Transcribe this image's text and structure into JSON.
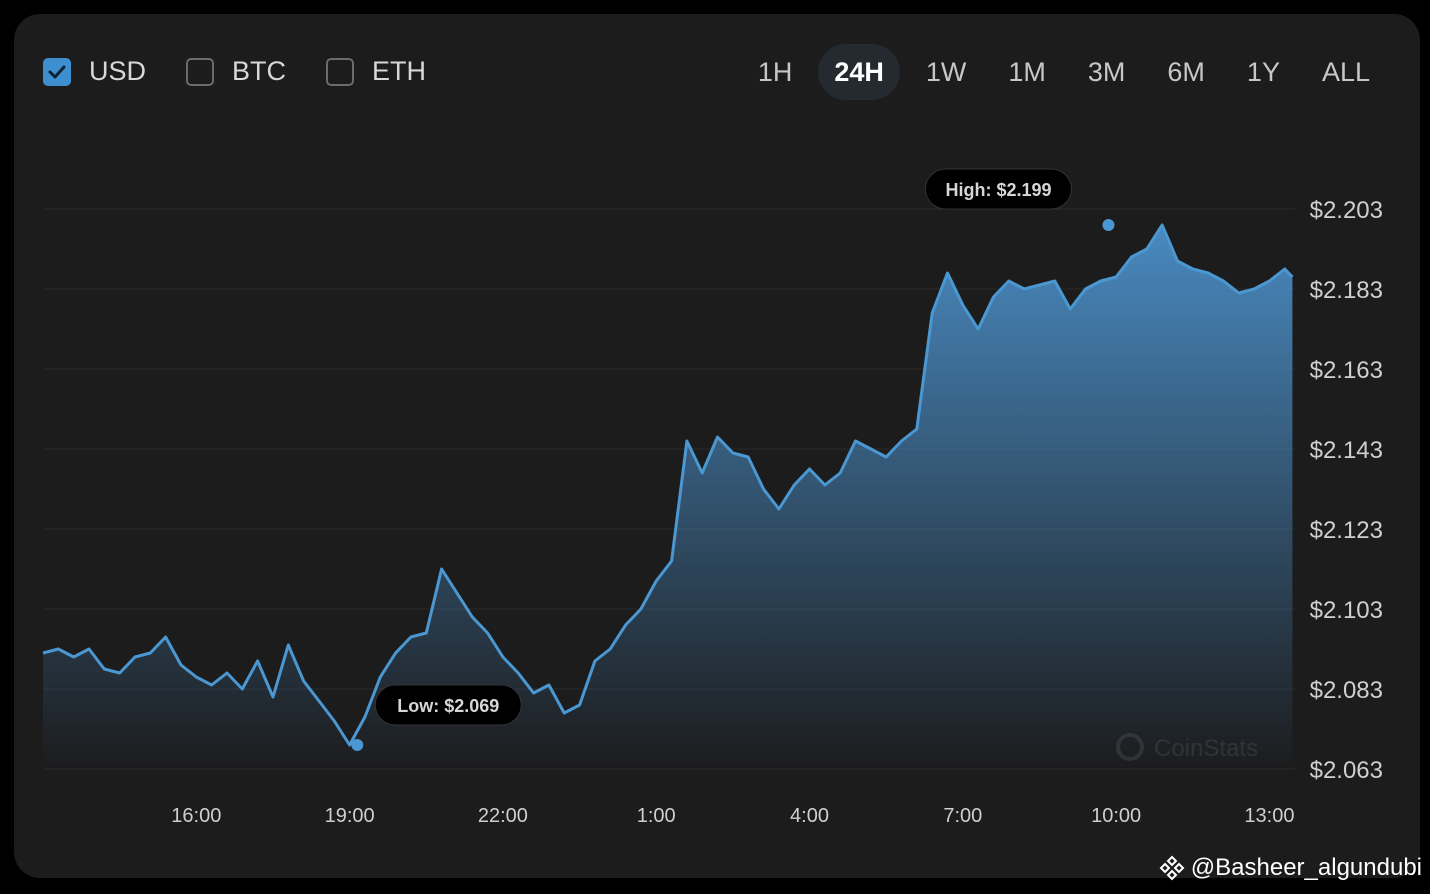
{
  "currencies": [
    {
      "label": "USD",
      "checked": true
    },
    {
      "label": "BTC",
      "checked": false
    },
    {
      "label": "ETH",
      "checked": false
    }
  ],
  "ranges": [
    {
      "label": "1H",
      "active": false
    },
    {
      "label": "24H",
      "active": true
    },
    {
      "label": "1W",
      "active": false
    },
    {
      "label": "1M",
      "active": false
    },
    {
      "label": "3M",
      "active": false
    },
    {
      "label": "6M",
      "active": false
    },
    {
      "label": "1Y",
      "active": false
    },
    {
      "label": "ALL",
      "active": false
    }
  ],
  "watermark": {
    "text": "Basheer_algundubi",
    "at": "@"
  },
  "colors": {
    "line": "#4a97d2",
    "fill_top": "#4b8fc8",
    "card": "#1c1c1d",
    "grid": "#2a2a2c",
    "tooltip_bg": "#000000"
  },
  "chart_data": {
    "type": "area",
    "brand_watermark": "CoinStats",
    "x_ticks": [
      "16:00",
      "19:00",
      "22:00",
      "1:00",
      "4:00",
      "7:00",
      "10:00",
      "13:00"
    ],
    "x_range": [
      13.0,
      37.5
    ],
    "y_ticks": [
      "$2.203",
      "$2.183",
      "$2.163",
      "$2.143",
      "$2.123",
      "$2.103",
      "$2.083",
      "$2.063"
    ],
    "ylim": [
      2.063,
      2.203
    ],
    "grid": true,
    "series": [
      {
        "x": [
          13.0,
          13.3,
          13.6,
          13.9,
          14.2,
          14.5,
          14.8,
          15.1,
          15.4,
          15.7,
          16.0,
          16.3,
          16.6,
          16.9,
          17.2,
          17.5,
          17.8,
          18.1,
          18.4,
          18.7,
          19.0,
          19.3,
          19.6,
          19.9,
          20.2,
          20.5,
          20.8,
          21.1,
          21.4,
          21.7,
          22.0,
          22.3,
          22.6,
          22.9,
          23.2,
          23.5,
          23.8,
          24.1,
          24.4,
          24.7,
          25.0,
          25.3,
          25.6,
          25.9,
          26.2,
          26.5,
          26.8,
          27.1,
          27.4,
          27.7,
          28.0,
          28.3,
          28.6,
          28.9,
          29.2,
          29.5,
          29.8,
          30.1,
          30.4,
          30.7,
          31.0,
          31.3,
          31.6,
          31.9,
          32.2,
          32.5,
          32.8,
          33.1,
          33.4,
          33.7,
          34.0,
          34.3,
          34.6,
          34.9,
          35.2,
          35.5,
          35.8,
          36.1,
          36.4,
          36.7,
          37.0,
          37.3,
          37.45
        ],
        "y": [
          2.092,
          2.093,
          2.091,
          2.093,
          2.088,
          2.087,
          2.091,
          2.092,
          2.096,
          2.089,
          2.086,
          2.084,
          2.087,
          2.083,
          2.09,
          2.081,
          2.094,
          2.085,
          2.08,
          2.075,
          2.069,
          2.076,
          2.086,
          2.092,
          2.096,
          2.097,
          2.113,
          2.107,
          2.101,
          2.097,
          2.091,
          2.087,
          2.082,
          2.084,
          2.077,
          2.079,
          2.09,
          2.093,
          2.099,
          2.103,
          2.11,
          2.115,
          2.145,
          2.137,
          2.146,
          2.142,
          2.141,
          2.133,
          2.128,
          2.134,
          2.138,
          2.134,
          2.137,
          2.145,
          2.143,
          2.141,
          2.145,
          2.148,
          2.177,
          2.187,
          2.179,
          2.173,
          2.181,
          2.185,
          2.183,
          2.184,
          2.185,
          2.178,
          2.183,
          2.185,
          2.186,
          2.191,
          2.193,
          2.199,
          2.19,
          2.188,
          2.187,
          2.185,
          2.182,
          2.183,
          2.185,
          2.188,
          2.186
        ]
      }
    ],
    "annotations": [
      {
        "label": "High: $2.199",
        "x": 33.85,
        "y": 2.199
      },
      {
        "label": "Low: $2.069",
        "x": 19.15,
        "y": 2.069
      }
    ]
  }
}
